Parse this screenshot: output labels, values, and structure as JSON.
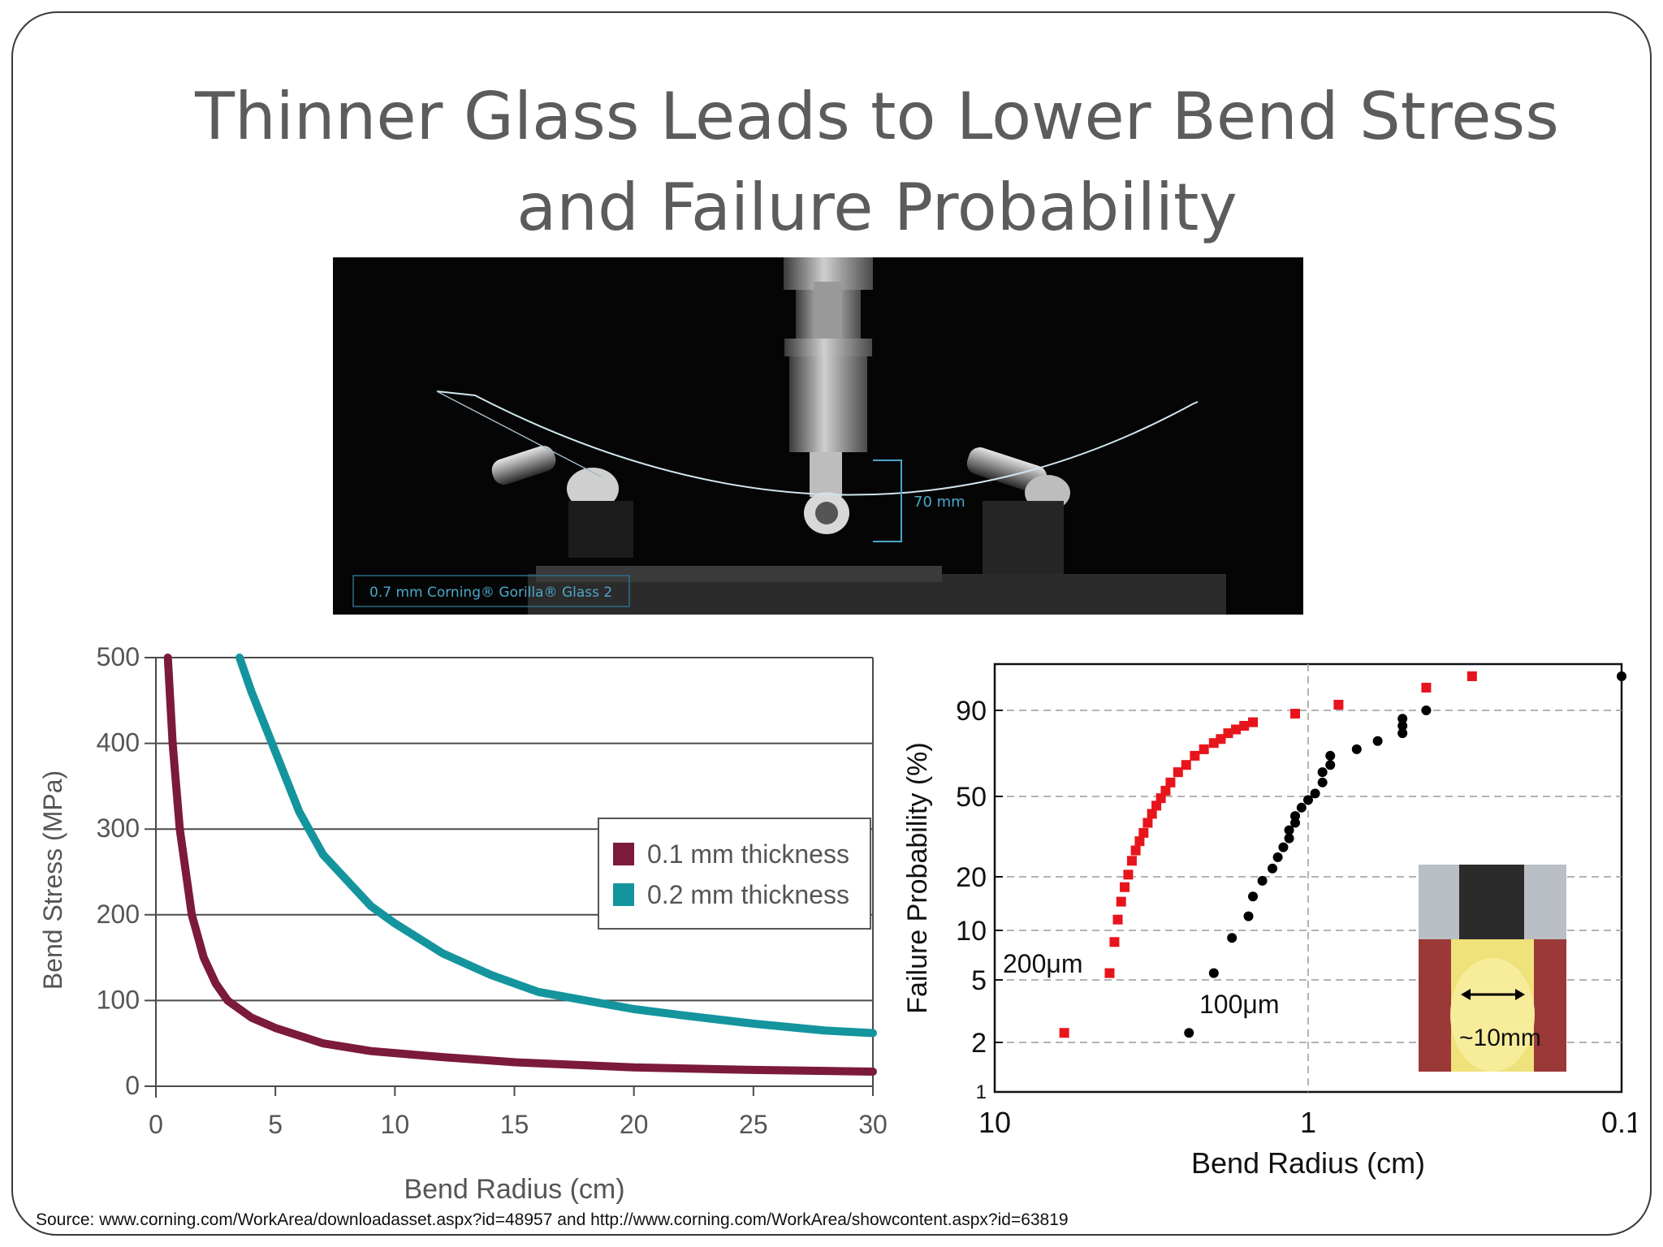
{
  "slide": {
    "title_line1": "Thinner Glass Leads to Lower Bend Stress",
    "title_line2": "and Failure Probability",
    "source": "Source: www.corning.com/WorkArea/downloadasset.aspx?id=48957 and http://www.corning.com/WorkArea/showcontent.aspx?id=63819"
  },
  "photo": {
    "caption": "0.7 mm Corning® Gorilla® Glass 2",
    "dimension_label": "70 mm"
  },
  "colors": {
    "series_01mm": "#7b1a3c",
    "series_02mm": "#14959e",
    "series_200um": "#e8141c",
    "series_100um": "#000000"
  },
  "chart_data": [
    {
      "type": "line",
      "xlabel": "Bend Radius (cm)",
      "ylabel": "Bend Stress (MPa)",
      "xlim": [
        0,
        30
      ],
      "ylim": [
        0,
        500
      ],
      "x_ticks": [
        "0",
        "5",
        "10",
        "15",
        "20",
        "25",
        "30"
      ],
      "y_ticks": [
        "0",
        "100",
        "200",
        "300",
        "400",
        "500"
      ],
      "grid": "horizontal",
      "legend_position": "right",
      "series": [
        {
          "name": "0.1 mm thickness",
          "color": "#7b1a3c",
          "x": [
            0.5,
            0.7,
            1,
            1.5,
            2,
            2.5,
            3,
            4,
            5,
            7,
            9,
            12,
            15,
            20,
            25,
            30
          ],
          "y": [
            500,
            400,
            300,
            200,
            150,
            120,
            100,
            80,
            68,
            50,
            41,
            34,
            28,
            22,
            19,
            17
          ]
        },
        {
          "name": "0.2 mm thickness",
          "color": "#14959e",
          "x": [
            3.5,
            4,
            5,
            6,
            7,
            8,
            9,
            10,
            12,
            14,
            16,
            18,
            20,
            22,
            25,
            28,
            30
          ],
          "y": [
            500,
            460,
            390,
            320,
            270,
            240,
            210,
            190,
            155,
            130,
            110,
            100,
            90,
            83,
            73,
            65,
            62
          ]
        }
      ]
    },
    {
      "type": "scatter",
      "xlabel": "Bend Radius (cm)",
      "ylabel": "Failure Probability (%)",
      "xscale": "log-reversed",
      "xlim": [
        10,
        0.1
      ],
      "x_ticks": [
        "10",
        "1",
        "0.1"
      ],
      "y_ticks": [
        "1",
        "2",
        "5",
        "10",
        "20",
        "50",
        "90"
      ],
      "grid": "dashed",
      "annotations": [
        "200μm",
        "100μm",
        "~10mm"
      ],
      "series": [
        {
          "name": "200μm",
          "color": "#e8141c",
          "x": [
            6.0,
            4.3,
            4.15,
            4.05,
            3.95,
            3.85,
            3.75,
            3.65,
            3.55,
            3.45,
            3.35,
            3.25,
            3.15,
            3.05,
            2.95,
            2.85,
            2.75,
            2.6,
            2.45,
            2.3,
            2.15,
            2.0,
            1.9,
            1.8,
            1.7,
            1.6,
            1.5,
            1.1,
            0.8,
            0.42,
            0.3
          ],
          "y": [
            2.3,
            5.5,
            8.5,
            11.5,
            14.5,
            17.5,
            20.5,
            24,
            27,
            30,
            33,
            37,
            41,
            45,
            49,
            52,
            55,
            59,
            62,
            66,
            69,
            72,
            74,
            77,
            79,
            81,
            83,
            88,
            91,
            94,
            96
          ]
        },
        {
          "name": "100μm",
          "color": "#000000",
          "x": [
            2.4,
            2.0,
            1.75,
            1.55,
            1.5,
            1.4,
            1.3,
            1.25,
            1.2,
            1.15,
            1.15,
            1.1,
            1.1,
            1.05,
            1.0,
            0.95,
            0.9,
            0.9,
            0.85,
            0.85,
            0.7,
            0.6,
            0.5,
            0.5,
            0.5,
            0.42,
            0.1
          ],
          "y": [
            2.3,
            5.5,
            9,
            12,
            15.5,
            19,
            22,
            25,
            28,
            31,
            34,
            37,
            40,
            44,
            48,
            51,
            55,
            59,
            62,
            66,
            69,
            73,
            77,
            81,
            85,
            90,
            96
          ]
        }
      ]
    }
  ]
}
